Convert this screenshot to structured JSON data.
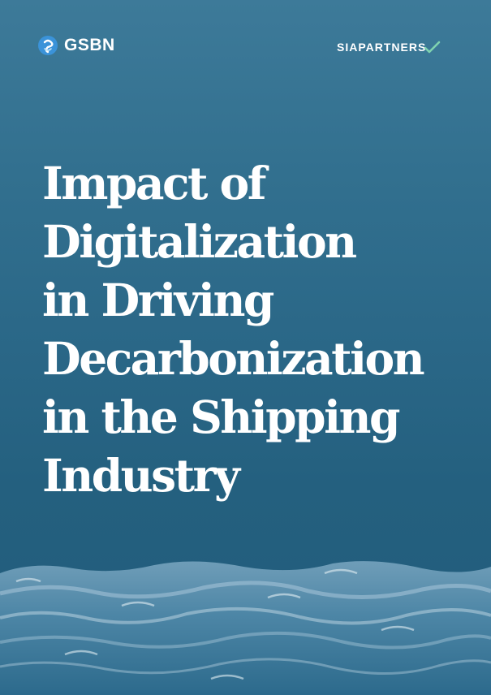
{
  "header": {
    "left_logo": {
      "icon": "gsbn-logo-icon",
      "text": "GSBN"
    },
    "right_logo": {
      "text": "SIAPARTNERS",
      "icon": "sia-check-icon",
      "accent": "#7fd3b0"
    }
  },
  "title": {
    "lines": [
      "Impact of",
      "Digitalization",
      "in Driving",
      "Decarbonization",
      "in the Shipping",
      "Industry"
    ]
  },
  "colors": {
    "background": "#2a6787",
    "text": "#ffffff"
  }
}
